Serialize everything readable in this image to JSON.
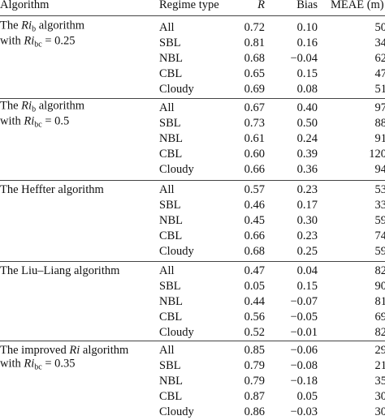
{
  "table": {
    "header": [
      "Algorithm",
      "Regime type",
      "R",
      "Bias",
      "MEAE (m)"
    ],
    "groups": [
      {
        "algorithm": [
          [
            {
              "t": "The "
            },
            {
              "t": "Ri",
              "s": "i"
            },
            {
              "t": "b",
              "s": "sub"
            },
            {
              "t": " algorithm"
            }
          ],
          [
            {
              "t": "with "
            },
            {
              "t": "Ri",
              "s": "i"
            },
            {
              "t": "bc",
              "s": "sub"
            },
            {
              "t": " = 0.25"
            }
          ]
        ],
        "rows": [
          [
            "All",
            "0.72",
            "0.10",
            "50"
          ],
          [
            "SBL",
            "0.81",
            "0.16",
            "34"
          ],
          [
            "NBL",
            "0.68",
            "−0.04",
            "62"
          ],
          [
            "CBL",
            "0.65",
            "0.15",
            "47"
          ],
          [
            "Cloudy",
            "0.69",
            "0.08",
            "51"
          ]
        ]
      },
      {
        "algorithm": [
          [
            {
              "t": "The "
            },
            {
              "t": "Ri",
              "s": "i"
            },
            {
              "t": "b",
              "s": "sub"
            },
            {
              "t": " algorithm"
            }
          ],
          [
            {
              "t": "with "
            },
            {
              "t": "Ri",
              "s": "i"
            },
            {
              "t": "bc",
              "s": "sub"
            },
            {
              "t": " = 0.5"
            }
          ]
        ],
        "rows": [
          [
            "All",
            "0.67",
            "0.40",
            "97"
          ],
          [
            "SBL",
            "0.73",
            "0.50",
            "88"
          ],
          [
            "NBL",
            "0.61",
            "0.24",
            "91"
          ],
          [
            "CBL",
            "0.60",
            "0.39",
            "120"
          ],
          [
            "Cloudy",
            "0.66",
            "0.36",
            "94"
          ]
        ]
      },
      {
        "algorithm": [
          [
            {
              "t": "The Heffter algorithm"
            }
          ]
        ],
        "rows": [
          [
            "All",
            "0.57",
            "0.23",
            "53"
          ],
          [
            "SBL",
            "0.46",
            "0.17",
            "33"
          ],
          [
            "NBL",
            "0.45",
            "0.30",
            "59"
          ],
          [
            "CBL",
            "0.66",
            "0.23",
            "74"
          ],
          [
            "Cloudy",
            "0.68",
            "0.25",
            "59"
          ]
        ]
      },
      {
        "algorithm": [
          [
            {
              "t": "The Liu–Liang algorithm"
            }
          ]
        ],
        "rows": [
          [
            "All",
            "0.47",
            "0.04",
            "82"
          ],
          [
            "SBL",
            "0.05",
            "0.15",
            "90"
          ],
          [
            "NBL",
            "0.44",
            "−0.07",
            "81"
          ],
          [
            "CBL",
            "0.56",
            "−0.05",
            "69"
          ],
          [
            "Cloudy",
            "0.52",
            "−0.01",
            "82"
          ]
        ]
      },
      {
        "algorithm": [
          [
            {
              "t": "The improved "
            },
            {
              "t": "Ri",
              "s": "i"
            },
            {
              "t": " algorithm"
            }
          ],
          [
            {
              "t": "with "
            },
            {
              "t": "Ri",
              "s": "i"
            },
            {
              "t": "bc",
              "s": "sub"
            },
            {
              "t": " = 0.35"
            }
          ]
        ],
        "rows": [
          [
            "All",
            "0.85",
            "−0.06",
            "29"
          ],
          [
            "SBL",
            "0.79",
            "−0.08",
            "21"
          ],
          [
            "NBL",
            "0.79",
            "−0.18",
            "35"
          ],
          [
            "CBL",
            "0.87",
            "0.05",
            "30"
          ],
          [
            "Cloudy",
            "0.86",
            "−0.03",
            "30"
          ]
        ]
      }
    ]
  }
}
